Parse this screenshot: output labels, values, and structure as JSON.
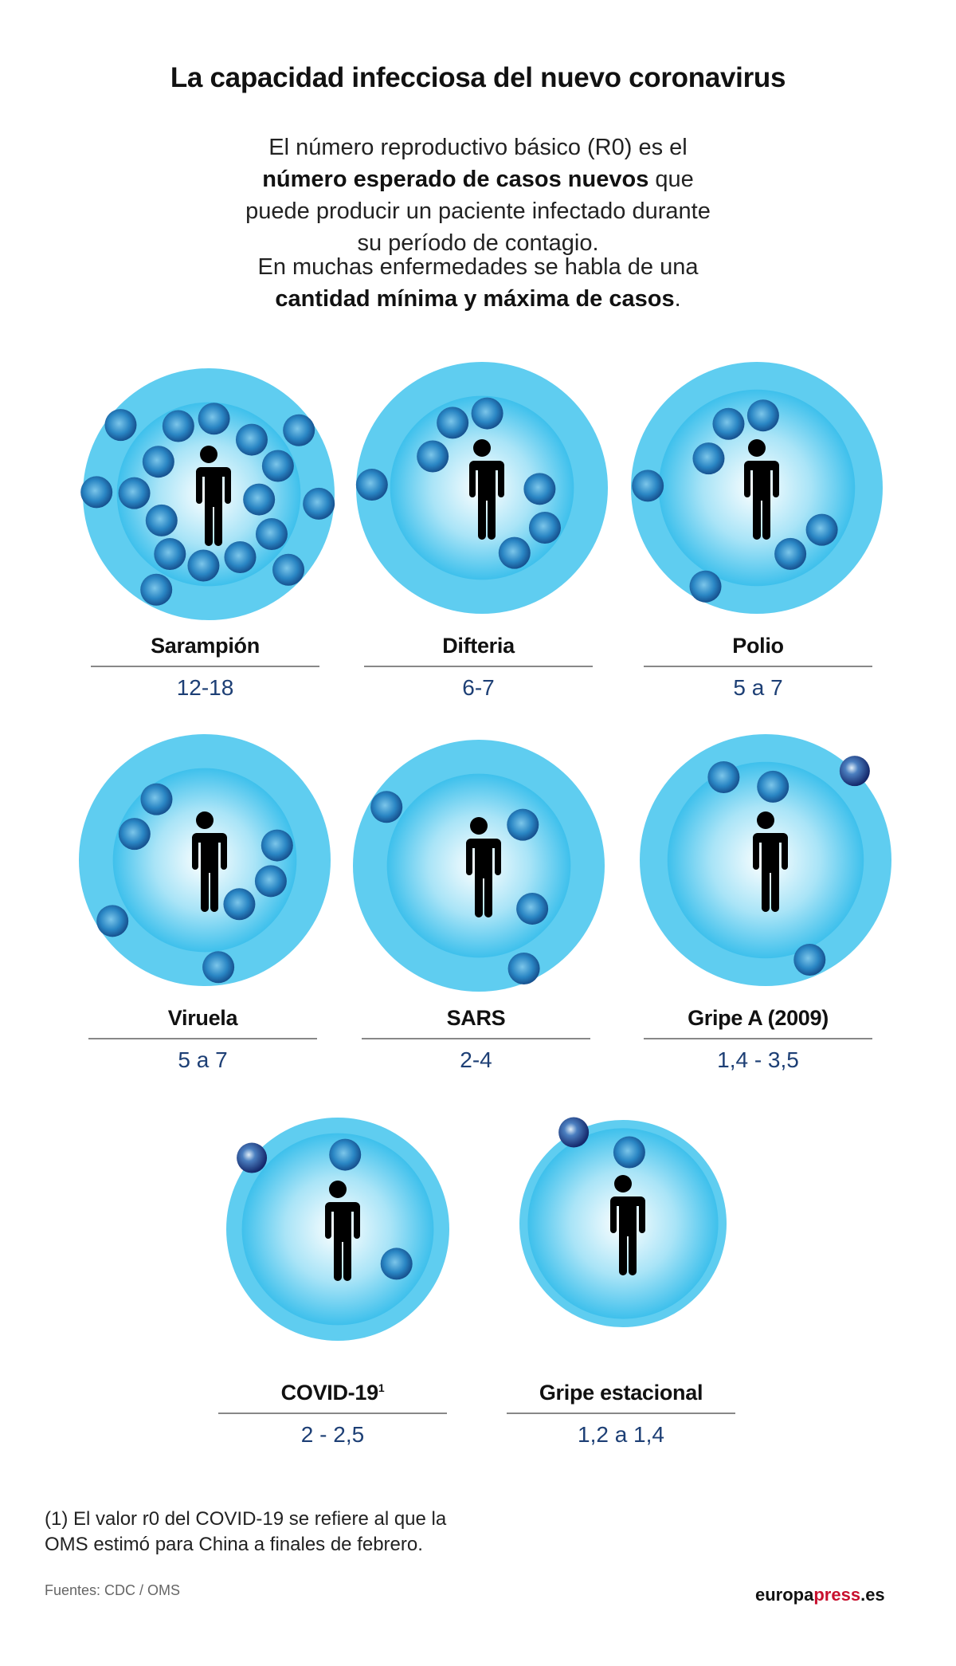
{
  "title": "La capacidad infecciosa del nuevo coronavirus",
  "intro": {
    "p1_a": "El número reproductivo básico (R0) es el ",
    "p1_bold": "número esperado de casos nuevos",
    "p1_b": " que puede producir un paciente infectado durante su período de contagio.",
    "p2_a": "En muchas enfermedades se habla de una ",
    "p2_bold": "cantidad mínima y máxima de casos",
    "p2_b": "."
  },
  "diseases": [
    {
      "name": "Sarampión",
      "r0": "12-18",
      "dots": 18,
      "dark_dots": 0
    },
    {
      "name": "Difteria",
      "r0": "6-7",
      "dots": 7,
      "dark_dots": 0
    },
    {
      "name": "Polio",
      "r0": "5 a 7",
      "dots": 7,
      "dark_dots": 0
    },
    {
      "name": "Viruela",
      "r0": "5 a 7",
      "dots": 7,
      "dark_dots": 0
    },
    {
      "name": "SARS",
      "r0": "2-4",
      "dots": 4,
      "dark_dots": 0
    },
    {
      "name": "Gripe A (2009)",
      "r0": "1,4 - 3,5",
      "dots": 4,
      "dark_dots": 1
    },
    {
      "name": "COVID-19",
      "superscript": "1",
      "r0": "2 - 2,5",
      "dots": 3,
      "dark_dots": 1
    },
    {
      "name": "Gripe estacional",
      "r0": "1,2 a 1,4",
      "dots": 2,
      "dark_dots": 1
    }
  ],
  "footnote": {
    "line1": "(1) El valor r0 del COVID-19 se refiere al que la",
    "line2": "OMS estimó para China a finales de febrero."
  },
  "sources": "Fuentes: CDC / OMS",
  "logo": {
    "part1": "europa",
    "part2": "press",
    "part3": ".es"
  },
  "colors": {
    "outer": "#5fcdf0",
    "inner": "#3ec0ec",
    "dot": "#1f78b8",
    "dot_dark": "#1a3a7a",
    "value": "#1d3f75",
    "logo_accent": "#c8102e"
  }
}
